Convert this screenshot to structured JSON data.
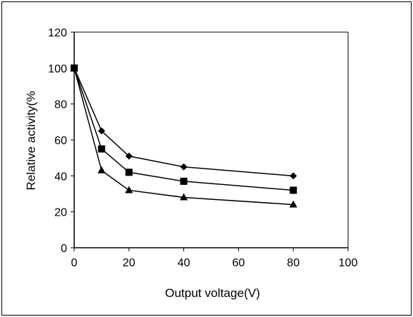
{
  "chart_data": {
    "type": "line",
    "title": "",
    "xlabel": "Output voltage(V)",
    "ylabel": "Relative activity(%",
    "xlim": [
      0,
      100
    ],
    "ylim": [
      0,
      120
    ],
    "xticks": [
      0,
      20,
      40,
      60,
      80,
      100
    ],
    "yticks": [
      0,
      20,
      40,
      60,
      80,
      100,
      120
    ],
    "xtick_labels": [
      "0",
      "20",
      "40",
      "60",
      "80",
      "100"
    ],
    "ytick_labels": [
      "0",
      "20",
      "40",
      "60",
      "80",
      "100",
      "120"
    ],
    "grid": false,
    "legend": "none",
    "series": [
      {
        "marker": "diamond",
        "x": [
          0,
          10,
          20,
          40,
          80
        ],
        "y": [
          100,
          65,
          51,
          45,
          40
        ]
      },
      {
        "marker": "square",
        "x": [
          0,
          10,
          20,
          40,
          80
        ],
        "y": [
          100,
          55,
          42,
          37,
          32
        ]
      },
      {
        "marker": "triangle",
        "x": [
          0,
          10,
          20,
          40,
          80
        ],
        "y": [
          100,
          43,
          32,
          28,
          24
        ]
      }
    ],
    "colors": {
      "line": "#000000",
      "marker": "#000000",
      "background": "#ffffff"
    }
  }
}
